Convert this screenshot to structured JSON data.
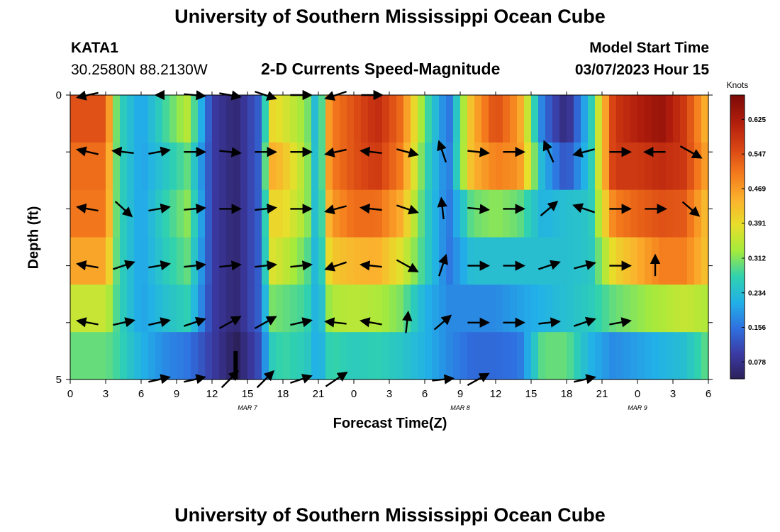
{
  "header": {
    "title": "University of Southern Mississippi Ocean Cube",
    "station": "KATA1",
    "coords": "30.2580N  88.2130W",
    "subtitle": "2-D Currents Speed-Magnitude",
    "model_label": "Model Start Time",
    "model_time": "03/07/2023 Hour 15"
  },
  "footer": {
    "title": "University of Southern Mississippi Ocean Cube"
  },
  "chart_data": {
    "type": "heatmap",
    "title": "2-D Currents Speed-Magnitude",
    "xlabel": "Forecast Time(Z)",
    "ylabel": "Depth (ft)",
    "x_tick_labels": [
      "0",
      "3",
      "6",
      "9",
      "12",
      "15",
      "18",
      "21",
      "0",
      "3",
      "6",
      "9",
      "12",
      "15",
      "18",
      "21",
      "0",
      "3",
      "6"
    ],
    "date_labels": [
      "MAR 7",
      "MAR 8",
      "MAR 9"
    ],
    "y_tick_labels": [
      "0",
      "5"
    ],
    "ylim": [
      0,
      5
    ],
    "x_range_hours": [
      0,
      54
    ],
    "colorbar": {
      "label": "Knots",
      "ticks": [
        "0.625",
        "0.547",
        "0.469",
        "0.391",
        "0.312",
        "0.234",
        "0.156",
        "0.078"
      ],
      "range": [
        0.04,
        0.68
      ],
      "colors": [
        "#2c1f57",
        "#3b3aa3",
        "#2f70e0",
        "#22b0e8",
        "#2fd1b0",
        "#a4ea3c",
        "#e7df2b",
        "#fbb12d",
        "#f47a1c",
        "#d84414",
        "#b01d0c",
        "#7e0b08"
      ]
    },
    "speed_x_hours": [
      0,
      3,
      4,
      6,
      8,
      10,
      12,
      14,
      16,
      17,
      18,
      20,
      21,
      22,
      24,
      26,
      28,
      30,
      32,
      34,
      36,
      38,
      40,
      42,
      44,
      46,
      48,
      50,
      52,
      54
    ],
    "depth_levels_ft": [
      0,
      1,
      2,
      3,
      4,
      5
    ],
    "speed_knots": [
      [
        0.55,
        0.55,
        0.28,
        0.2,
        0.28,
        0.35,
        0.1,
        0.06,
        0.14,
        0.4,
        0.38,
        0.32,
        0.2,
        0.5,
        0.55,
        0.6,
        0.52,
        0.3,
        0.15,
        0.44,
        0.56,
        0.47,
        0.16,
        0.06,
        0.25,
        0.58,
        0.62,
        0.65,
        0.58,
        0.43
      ],
      [
        0.52,
        0.52,
        0.28,
        0.2,
        0.25,
        0.3,
        0.1,
        0.06,
        0.14,
        0.45,
        0.43,
        0.33,
        0.2,
        0.5,
        0.55,
        0.58,
        0.5,
        0.28,
        0.16,
        0.44,
        0.5,
        0.48,
        0.22,
        0.12,
        0.25,
        0.58,
        0.58,
        0.6,
        0.58,
        0.45
      ],
      [
        0.51,
        0.51,
        0.28,
        0.2,
        0.27,
        0.32,
        0.1,
        0.06,
        0.14,
        0.4,
        0.4,
        0.33,
        0.2,
        0.47,
        0.52,
        0.52,
        0.45,
        0.27,
        0.16,
        0.3,
        0.32,
        0.3,
        0.22,
        0.24,
        0.25,
        0.5,
        0.53,
        0.55,
        0.54,
        0.42
      ],
      [
        0.46,
        0.46,
        0.28,
        0.2,
        0.26,
        0.3,
        0.1,
        0.06,
        0.14,
        0.38,
        0.36,
        0.3,
        0.2,
        0.42,
        0.44,
        0.45,
        0.38,
        0.27,
        0.16,
        0.24,
        0.24,
        0.24,
        0.24,
        0.24,
        0.25,
        0.4,
        0.45,
        0.5,
        0.5,
        0.42
      ],
      [
        0.36,
        0.36,
        0.28,
        0.2,
        0.24,
        0.27,
        0.1,
        0.06,
        0.14,
        0.31,
        0.3,
        0.28,
        0.2,
        0.34,
        0.35,
        0.34,
        0.31,
        0.22,
        0.18,
        0.18,
        0.18,
        0.2,
        0.22,
        0.24,
        0.26,
        0.3,
        0.32,
        0.34,
        0.36,
        0.34
      ],
      [
        0.3,
        0.3,
        0.28,
        0.22,
        0.18,
        0.16,
        0.1,
        0.04,
        0.12,
        0.26,
        0.28,
        0.26,
        0.2,
        0.28,
        0.26,
        0.27,
        0.25,
        0.22,
        0.18,
        0.15,
        0.15,
        0.16,
        0.3,
        0.3,
        0.22,
        0.18,
        0.2,
        0.22,
        0.24,
        0.3
      ]
    ],
    "vectors": {
      "depth_rows_ft": [
        0,
        1,
        2,
        3,
        4,
        5
      ],
      "columns_hours": [
        1.5,
        4.5,
        7.5,
        10.5,
        13.5,
        16.5,
        19.5,
        22.5,
        25.5,
        28.5,
        31.5,
        34.5,
        37.5,
        40.5,
        43.5,
        46.5,
        49.5,
        52.5
      ],
      "u_v_knots": [
        [
          [
            -0.45,
            -0.1
          ],
          [
            0.0,
            0.0
          ],
          [
            -0.12,
            0.0
          ],
          [
            0.45,
            -0.04
          ],
          [
            0.45,
            -0.08
          ],
          [
            0.45,
            -0.15
          ],
          [
            0.45,
            0.0
          ],
          [
            -0.45,
            -0.15
          ],
          [
            0.45,
            0.0
          ],
          [
            0.0,
            0.0
          ],
          [
            0.0,
            0.0
          ],
          [
            0.0,
            0.0
          ],
          [
            0.0,
            0.0
          ],
          [
            0.0,
            0.0
          ],
          [
            0.0,
            0.0
          ],
          [
            0.0,
            0.0
          ],
          [
            0.0,
            0.0
          ],
          [
            0.0,
            0.0
          ]
        ],
        [
          [
            -0.45,
            0.1
          ],
          [
            -0.45,
            0.05
          ],
          [
            0.45,
            0.08
          ],
          [
            0.45,
            0.0
          ],
          [
            0.45,
            -0.05
          ],
          [
            0.45,
            0.0
          ],
          [
            0.45,
            0.0
          ],
          [
            -0.45,
            -0.1
          ],
          [
            -0.45,
            0.05
          ],
          [
            0.45,
            -0.12
          ],
          [
            -0.15,
            0.45
          ],
          [
            0.45,
            -0.05
          ],
          [
            0.45,
            0.0
          ],
          [
            -0.2,
            0.45
          ],
          [
            -0.45,
            -0.12
          ],
          [
            0.45,
            0.0
          ],
          [
            -0.45,
            0.0
          ],
          [
            0.45,
            -0.25
          ]
        ],
        [
          [
            -0.45,
            0.08
          ],
          [
            0.35,
            -0.32
          ],
          [
            0.45,
            0.08
          ],
          [
            0.45,
            0.04
          ],
          [
            0.45,
            0.0
          ],
          [
            0.45,
            0.05
          ],
          [
            0.45,
            0.0
          ],
          [
            -0.45,
            -0.12
          ],
          [
            -0.45,
            0.05
          ],
          [
            0.45,
            -0.15
          ],
          [
            -0.05,
            0.45
          ],
          [
            0.45,
            -0.04
          ],
          [
            0.45,
            0.0
          ],
          [
            0.35,
            0.3
          ],
          [
            -0.45,
            0.15
          ],
          [
            0.45,
            0.0
          ],
          [
            0.45,
            0.0
          ],
          [
            0.35,
            -0.3
          ]
        ],
        [
          [
            -0.45,
            0.08
          ],
          [
            0.45,
            0.15
          ],
          [
            0.45,
            0.08
          ],
          [
            0.45,
            0.05
          ],
          [
            0.45,
            0.05
          ],
          [
            0.45,
            0.05
          ],
          [
            0.45,
            0.05
          ],
          [
            -0.45,
            -0.15
          ],
          [
            -0.45,
            0.05
          ],
          [
            0.45,
            -0.25
          ],
          [
            0.15,
            0.45
          ],
          [
            0.45,
            0.0
          ],
          [
            0.45,
            0.0
          ],
          [
            0.45,
            0.15
          ],
          [
            0.45,
            0.12
          ],
          [
            0.45,
            0.0
          ],
          [
            0.0,
            0.45
          ],
          [
            0.0,
            0.0
          ]
        ],
        [
          [
            -0.45,
            0.08
          ],
          [
            0.45,
            0.1
          ],
          [
            0.45,
            0.1
          ],
          [
            0.45,
            0.15
          ],
          [
            0.45,
            0.25
          ],
          [
            0.45,
            0.25
          ],
          [
            0.45,
            0.1
          ],
          [
            -0.45,
            0.05
          ],
          [
            -0.45,
            0.08
          ],
          [
            0.05,
            0.45
          ],
          [
            0.35,
            0.3
          ],
          [
            0.45,
            0.0
          ],
          [
            0.45,
            0.0
          ],
          [
            0.45,
            0.05
          ],
          [
            0.45,
            0.15
          ],
          [
            0.45,
            0.08
          ],
          [
            0.0,
            0.0
          ],
          [
            0.0,
            0.0
          ]
        ],
        [
          [
            0.0,
            0.0
          ],
          [
            0.0,
            0.0
          ],
          [
            0.45,
            0.1
          ],
          [
            0.45,
            0.1
          ],
          [
            0.35,
            0.35
          ],
          [
            0.35,
            0.35
          ],
          [
            0.45,
            0.15
          ],
          [
            0.45,
            0.3
          ],
          [
            0.0,
            0.0
          ],
          [
            0.0,
            0.0
          ],
          [
            0.45,
            0.05
          ],
          [
            0.45,
            0.25
          ],
          [
            0.0,
            0.0
          ],
          [
            0.0,
            0.0
          ],
          [
            0.45,
            0.1
          ],
          [
            0.0,
            0.0
          ],
          [
            0.0,
            0.0
          ],
          [
            0.0,
            0.0
          ]
        ]
      ]
    },
    "current_time_marker_hours": 14
  }
}
